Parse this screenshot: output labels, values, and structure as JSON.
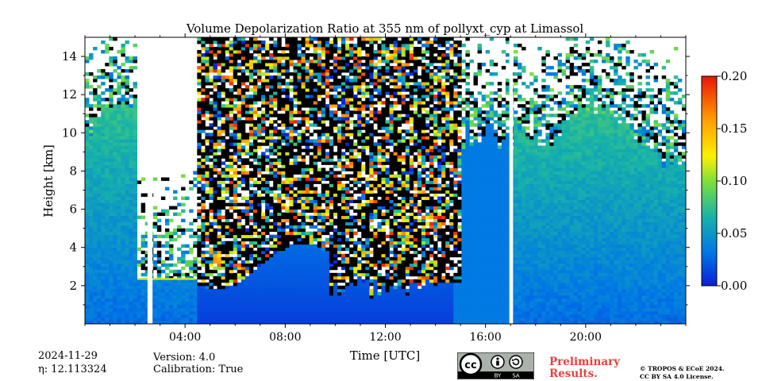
{
  "chart_data": {
    "type": "heatmap",
    "title": "Volume Depolarization Ratio at 355 nm of pollyxt_cyp at Limassol",
    "xlabel": "Time [UTC]",
    "ylabel": "Height [km]",
    "x_range_hours": [
      0,
      24
    ],
    "ylim": [
      0,
      15
    ],
    "x_ticks": [
      "04:00",
      "08:00",
      "12:00",
      "16:00",
      "20:00"
    ],
    "x_tick_hours": [
      4,
      8,
      12,
      16,
      20
    ],
    "y_ticks": [
      "2",
      "4",
      "6",
      "8",
      "10",
      "12",
      "14"
    ],
    "y_tick_values": [
      2,
      4,
      6,
      8,
      10,
      12,
      14
    ],
    "colorbar": {
      "min": 0.0,
      "max": 0.2,
      "ticks": [
        "0.00",
        "0.05",
        "0.10",
        "0.15",
        "0.20"
      ],
      "tick_values": [
        0.0,
        0.05,
        0.1,
        0.15,
        0.2
      ],
      "colormap": "jet",
      "colors": [
        "#0a1fd6",
        "#0077e6",
        "#18b3a8",
        "#7fe03a",
        "#ffef00",
        "#ff9a00",
        "#e8140a"
      ]
    },
    "features": {
      "cloud_layer_km": [
        2.3,
        2.4
      ],
      "cloud_layer_time_hours": [
        2.1,
        4.4
      ],
      "no_data_gaps_hours": [
        [
          2.5,
          2.7
        ],
        [
          16.95,
          17.1
        ]
      ],
      "low_cloud_tops_km_range": [
        1.3,
        2.4
      ],
      "low_cloud_time_hours": [
        9.8,
        14.0
      ]
    }
  },
  "meta": {
    "date": "2024-11-29",
    "eta": "η: 12.113324",
    "version": "Version: 4.0",
    "calibration": "Calibration: True"
  },
  "license": {
    "badge_cc": "cc",
    "badge_by": "BY",
    "badge_sa": "SA",
    "preliminary_line1": "Preliminary",
    "preliminary_line2": "Results.",
    "copyright_line1": "© TROPOS & ECoE 2024.",
    "copyright_line2": "CC BY SA 4.0 License."
  }
}
